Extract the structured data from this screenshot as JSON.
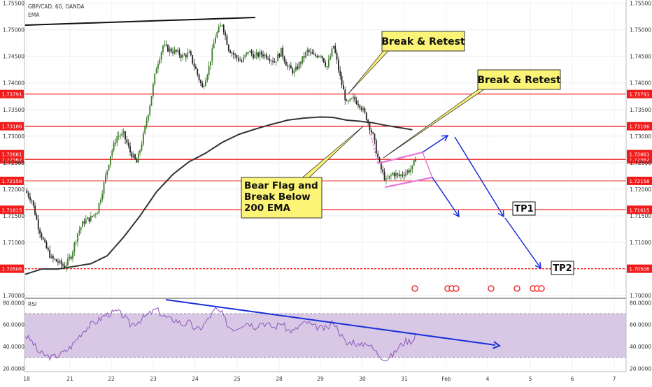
{
  "header": {
    "symbol": "GBP/CAD, 60, OANDA",
    "indicator": "EMA"
  },
  "chart_data": [
    {
      "type": "candlestick",
      "title": "GBP/CAD, 60, OANDA",
      "ylim": [
        1.6995,
        1.7556
      ],
      "y_ticks": [
        "1.75500",
        "1.75000",
        "1.74500",
        "1.74000",
        "1.73500",
        "1.73000",
        "1.72500",
        "1.72000",
        "1.71500",
        "1.71000",
        "1.70000"
      ],
      "x_ticks": [
        "18",
        "21",
        "22",
        "23",
        "24",
        "25",
        "28",
        "29",
        "30",
        "31",
        "Feb",
        "4",
        "5",
        "6",
        "7"
      ],
      "grid": true,
      "levels": [
        {
          "label": "1.73791",
          "value": 1.73791,
          "style": "solid"
        },
        {
          "label": "1.73186",
          "value": 1.73186,
          "style": "solid"
        },
        {
          "label": "1.72562",
          "value": 1.72562,
          "style": "solid"
        },
        {
          "label": "1.72158",
          "value": 1.72158,
          "style": "thin"
        },
        {
          "label": "1.71615",
          "value": 1.71615,
          "style": "solid"
        },
        {
          "label": "1.70506",
          "value": 1.70506,
          "style": "dashed"
        }
      ],
      "right_axis_hidden_label": "1.72661",
      "annotations": [
        {
          "text": "Break & Retest"
        },
        {
          "text": "Break & Retest"
        },
        {
          "text": "Bear Flag and Break Below 200 EMA"
        }
      ],
      "targets": [
        "TP1",
        "TP2"
      ],
      "price_path_key": [
        [
          0,
          1.7198
        ],
        [
          4,
          1.718
        ],
        [
          8,
          1.713
        ],
        [
          12,
          1.7095
        ],
        [
          16,
          1.707
        ],
        [
          20,
          1.7063
        ],
        [
          24,
          1.7055
        ],
        [
          28,
          1.7075
        ],
        [
          32,
          1.7118
        ],
        [
          36,
          1.714
        ],
        [
          40,
          1.7146
        ],
        [
          44,
          1.716
        ],
        [
          48,
          1.721
        ],
        [
          52,
          1.7265
        ],
        [
          56,
          1.73
        ],
        [
          60,
          1.7303
        ],
        [
          64,
          1.727
        ],
        [
          68,
          1.725
        ],
        [
          72,
          1.73
        ],
        [
          76,
          1.736
        ],
        [
          80,
          1.743
        ],
        [
          84,
          1.747
        ],
        [
          88,
          1.7462
        ],
        [
          92,
          1.7458
        ],
        [
          96,
          1.745
        ],
        [
          100,
          1.7455
        ],
        [
          104,
          1.7425
        ],
        [
          108,
          1.739
        ],
        [
          112,
          1.743
        ],
        [
          116,
          1.7488
        ],
        [
          120,
          1.7512
        ],
        [
          124,
          1.7465
        ],
        [
          128,
          1.745
        ],
        [
          132,
          1.744
        ],
        [
          136,
          1.746
        ],
        [
          140,
          1.745
        ],
        [
          144,
          1.7455
        ],
        [
          148,
          1.745
        ],
        [
          152,
          1.744
        ],
        [
          156,
          1.746
        ],
        [
          160,
          1.743
        ],
        [
          164,
          1.742
        ],
        [
          168,
          1.744
        ],
        [
          172,
          1.746
        ],
        [
          176,
          1.745
        ],
        [
          180,
          1.7455
        ],
        [
          184,
          1.743
        ],
        [
          188,
          1.747
        ],
        [
          192,
          1.741
        ],
        [
          196,
          1.736
        ],
        [
          200,
          1.737
        ],
        [
          204,
          1.736
        ],
        [
          208,
          1.7335
        ],
        [
          212,
          1.73
        ],
        [
          216,
          1.7245
        ],
        [
          220,
          1.7215
        ],
        [
          224,
          1.723
        ],
        [
          228,
          1.7225
        ],
        [
          232,
          1.7232
        ],
        [
          236,
          1.724
        ],
        [
          238,
          1.7258
        ]
      ],
      "ema_path_key": [
        [
          0,
          1.704
        ],
        [
          10,
          1.705
        ],
        [
          20,
          1.705
        ],
        [
          30,
          1.7055
        ],
        [
          40,
          1.706
        ],
        [
          50,
          1.7075
        ],
        [
          60,
          1.711
        ],
        [
          70,
          1.715
        ],
        [
          80,
          1.7195
        ],
        [
          90,
          1.7228
        ],
        [
          100,
          1.7252
        ],
        [
          110,
          1.7268
        ],
        [
          120,
          1.7288
        ],
        [
          130,
          1.7303
        ],
        [
          140,
          1.7313
        ],
        [
          150,
          1.7322
        ],
        [
          160,
          1.733
        ],
        [
          170,
          1.7334
        ],
        [
          180,
          1.7336
        ],
        [
          188,
          1.7335
        ],
        [
          196,
          1.733
        ],
        [
          204,
          1.7328
        ],
        [
          212,
          1.7325
        ],
        [
          220,
          1.732
        ],
        [
          228,
          1.7316
        ],
        [
          236,
          1.7312
        ]
      ]
    },
    {
      "type": "line",
      "title": "RSI",
      "ylim": [
        17,
        84
      ],
      "y_ticks": [
        "80.0000",
        "60.0000",
        "40.0000",
        "20.0000"
      ],
      "band": [
        30,
        70
      ],
      "rsi_path_key": [
        [
          0,
          50
        ],
        [
          4,
          45
        ],
        [
          8,
          35
        ],
        [
          12,
          32
        ],
        [
          16,
          30
        ],
        [
          20,
          32
        ],
        [
          24,
          35
        ],
        [
          28,
          40
        ],
        [
          32,
          48
        ],
        [
          36,
          55
        ],
        [
          40,
          60
        ],
        [
          44,
          63
        ],
        [
          48,
          68
        ],
        [
          52,
          70
        ],
        [
          56,
          72
        ],
        [
          60,
          68
        ],
        [
          64,
          60
        ],
        [
          68,
          62
        ],
        [
          72,
          66
        ],
        [
          76,
          70
        ],
        [
          80,
          74
        ],
        [
          84,
          68
        ],
        [
          88,
          65
        ],
        [
          92,
          64
        ],
        [
          96,
          60
        ],
        [
          100,
          62
        ],
        [
          104,
          55
        ],
        [
          108,
          58
        ],
        [
          112,
          66
        ],
        [
          116,
          74
        ],
        [
          120,
          70
        ],
        [
          124,
          58
        ],
        [
          128,
          56
        ],
        [
          132,
          60
        ],
        [
          136,
          62
        ],
        [
          140,
          58
        ],
        [
          144,
          62
        ],
        [
          148,
          60
        ],
        [
          152,
          57
        ],
        [
          156,
          62
        ],
        [
          160,
          55
        ],
        [
          164,
          54
        ],
        [
          168,
          60
        ],
        [
          172,
          62
        ],
        [
          176,
          58
        ],
        [
          180,
          57
        ],
        [
          184,
          56
        ],
        [
          188,
          63
        ],
        [
          192,
          52
        ],
        [
          196,
          42
        ],
        [
          200,
          45
        ],
        [
          204,
          40
        ],
        [
          208,
          44
        ],
        [
          212,
          38
        ],
        [
          216,
          32
        ],
        [
          220,
          28
        ],
        [
          224,
          32
        ],
        [
          228,
          40
        ],
        [
          232,
          45
        ],
        [
          236,
          45
        ],
        [
          238,
          52
        ]
      ]
    }
  ],
  "colors": {
    "level": "#f01c1c",
    "bull": "#3a7d28",
    "bear": "#222222",
    "ema": "#333333",
    "arrow": "#1a2fd8",
    "flag": "#e77ad9",
    "rsi_line": "#8e56b8",
    "rsi_band": "#d8c8e6",
    "callout": "#fbf477"
  }
}
